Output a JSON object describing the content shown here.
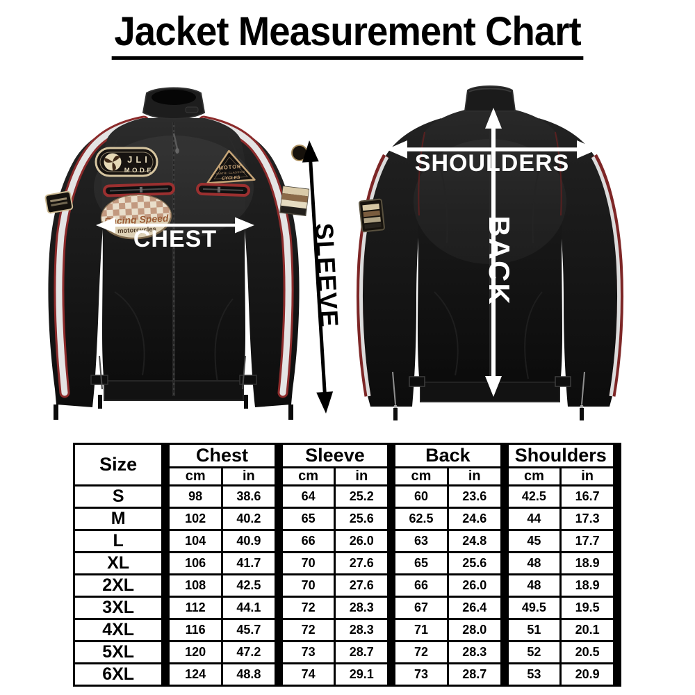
{
  "title": "Jacket Measurement Chart",
  "figure": {
    "labels": {
      "chest": "CHEST",
      "sleeve": "SLEEVE",
      "shoulders": "SHOULDERS",
      "back": "BACK"
    },
    "front_jacket": {
      "description": "black leather biker jacket, front view, white racing stripes",
      "patches": {
        "badge_line1": "JLI",
        "badge_line2": "MODE",
        "triangle_line1": "MOTOR",
        "triangle_line2": "VAATRI CLASSICS",
        "triangle_line3": "CYCLES",
        "oval_line1": "Racing Speed",
        "oval_line2": "motorcycles"
      }
    },
    "back_jacket": {
      "description": "black leather biker jacket, back view"
    },
    "colors": {
      "arrow_white": "#ffffff",
      "arrow_black": "#000000",
      "leather_dark": "#141414",
      "stripe_white": "#e4e4e4",
      "stripe_red": "#8c2b2b",
      "patch_beige": "#d6c5a0"
    }
  },
  "table": {
    "size_header": "Size",
    "groups": [
      {
        "label": "Chest",
        "units": [
          "cm",
          "in"
        ]
      },
      {
        "label": "Sleeve",
        "units": [
          "cm",
          "in"
        ]
      },
      {
        "label": "Back",
        "units": [
          "cm",
          "in"
        ]
      },
      {
        "label": "Shoulders",
        "units": [
          "cm",
          "in"
        ]
      }
    ],
    "rows": [
      {
        "size": "S",
        "values": [
          "98",
          "38.6",
          "64",
          "25.2",
          "60",
          "23.6",
          "42.5",
          "16.7"
        ]
      },
      {
        "size": "M",
        "values": [
          "102",
          "40.2",
          "65",
          "25.6",
          "62.5",
          "24.6",
          "44",
          "17.3"
        ]
      },
      {
        "size": "L",
        "values": [
          "104",
          "40.9",
          "66",
          "26.0",
          "63",
          "24.8",
          "45",
          "17.7"
        ]
      },
      {
        "size": "XL",
        "values": [
          "106",
          "41.7",
          "70",
          "27.6",
          "65",
          "25.6",
          "48",
          "18.9"
        ]
      },
      {
        "size": "2XL",
        "values": [
          "108",
          "42.5",
          "70",
          "27.6",
          "66",
          "26.0",
          "48",
          "18.9"
        ]
      },
      {
        "size": "3XL",
        "values": [
          "112",
          "44.1",
          "72",
          "28.3",
          "67",
          "26.4",
          "49.5",
          "19.5"
        ]
      },
      {
        "size": "4XL",
        "values": [
          "116",
          "45.7",
          "72",
          "28.3",
          "71",
          "28.0",
          "51",
          "20.1"
        ]
      },
      {
        "size": "5XL",
        "values": [
          "120",
          "47.2",
          "73",
          "28.7",
          "72",
          "28.3",
          "52",
          "20.5"
        ]
      },
      {
        "size": "6XL",
        "values": [
          "124",
          "48.8",
          "74",
          "29.1",
          "73",
          "28.7",
          "53",
          "20.9"
        ]
      }
    ]
  }
}
